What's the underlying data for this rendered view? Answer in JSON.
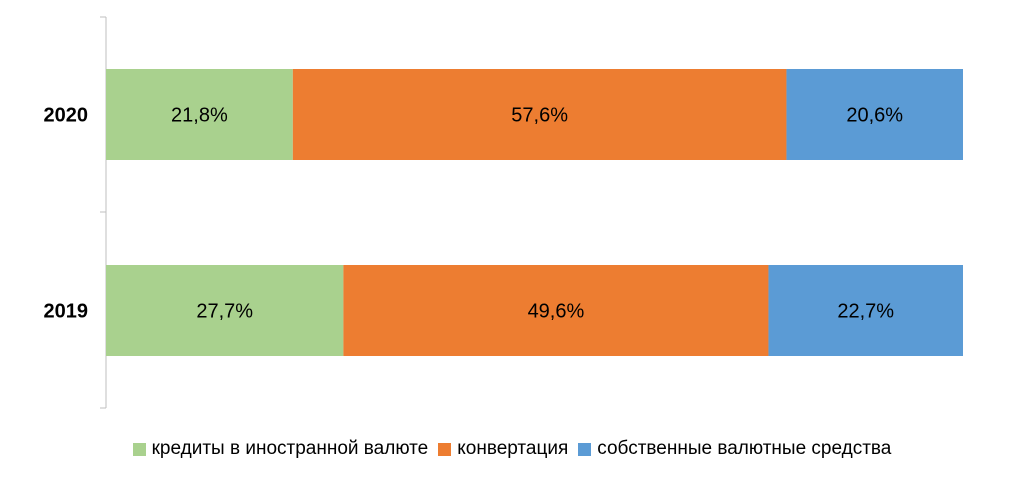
{
  "chart_data": {
    "type": "bar",
    "orientation": "horizontal",
    "stacked": "percent",
    "categories": [
      "2020",
      "2019"
    ],
    "series": [
      {
        "name": "кредиты в иностранной валюте",
        "values": [
          21.8,
          27.7
        ],
        "labels": [
          "21,8%",
          "27,7%"
        ],
        "color": "#a9d18e"
      },
      {
        "name": "конвертация",
        "values": [
          57.6,
          49.6
        ],
        "labels": [
          "57,6%",
          "49,6%"
        ],
        "color": "#ed7d31"
      },
      {
        "name": "собственные валютные средства",
        "values": [
          20.6,
          22.7
        ],
        "labels": [
          "20,6%",
          "22,7%"
        ],
        "color": "#5b9bd5"
      }
    ],
    "xlim": [
      0,
      100
    ],
    "grid": false,
    "legend": "bottom"
  }
}
